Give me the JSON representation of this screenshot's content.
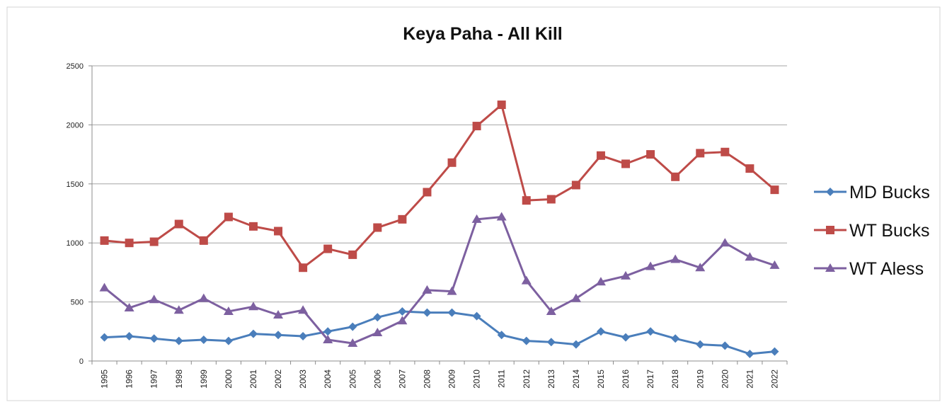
{
  "chart_data": {
    "type": "line",
    "title": "Keya Paha - All Kill",
    "xlabel": "",
    "ylabel": "",
    "ylim": [
      0,
      2500
    ],
    "yticks": [
      0,
      500,
      1000,
      1500,
      2000,
      2500
    ],
    "grid": "horizontal",
    "legend": "right",
    "categories": [
      "1995",
      "1996",
      "1997",
      "1998",
      "1999",
      "2000",
      "2001",
      "2002",
      "2003",
      "2004",
      "2005",
      "2006",
      "2007",
      "2008",
      "2009",
      "2010",
      "2011",
      "2012",
      "2013",
      "2014",
      "2015",
      "2016",
      "2017",
      "2018",
      "2019",
      "2020",
      "2021",
      "2022"
    ],
    "series": [
      {
        "name": "MD Bucks",
        "color": "#4A7EBB",
        "marker": "diamond",
        "values": [
          200,
          210,
          190,
          170,
          180,
          170,
          230,
          220,
          210,
          250,
          290,
          370,
          420,
          410,
          410,
          380,
          220,
          170,
          160,
          140,
          250,
          200,
          250,
          190,
          140,
          130,
          60,
          80
        ]
      },
      {
        "name": "WT Bucks",
        "color": "#BE4B48",
        "marker": "square",
        "values": [
          1020,
          1000,
          1010,
          1160,
          1020,
          1220,
          1140,
          1100,
          790,
          950,
          900,
          1130,
          1200,
          1430,
          1680,
          1990,
          2170,
          1360,
          1370,
          1490,
          1740,
          1670,
          1750,
          1560,
          1760,
          1770,
          1630,
          1450
        ]
      },
      {
        "name": "WT Aless",
        "color": "#7D60A0",
        "marker": "triangle",
        "values": [
          620,
          450,
          520,
          430,
          530,
          420,
          460,
          390,
          430,
          180,
          150,
          240,
          340,
          600,
          590,
          1200,
          1220,
          680,
          420,
          530,
          670,
          720,
          800,
          860,
          790,
          1000,
          880,
          810
        ]
      }
    ]
  }
}
